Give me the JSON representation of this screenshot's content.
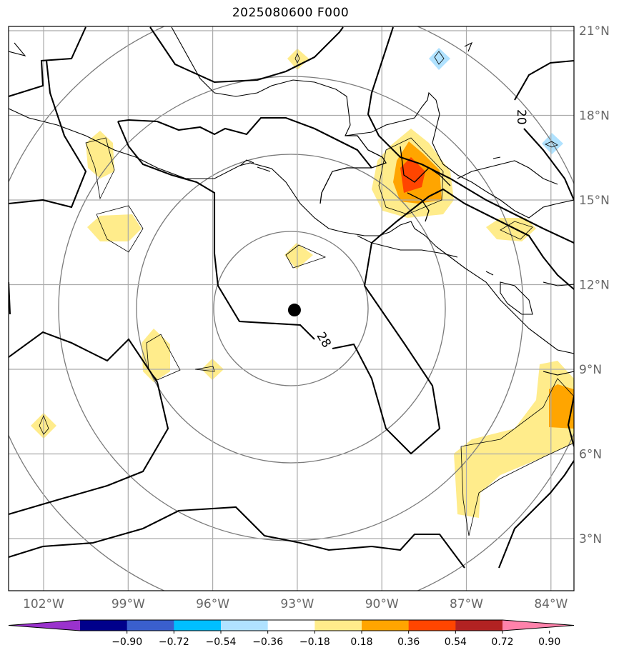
{
  "title": "2025080600 F000",
  "lat_labels": [
    "21°N",
    "18°N",
    "15°N",
    "12°N",
    "9°N",
    "6°N",
    "3°N"
  ],
  "lon_labels": [
    "102°W",
    "99°W",
    "96°W",
    "93°W",
    "90°W",
    "87°W",
    "84°W"
  ],
  "contour_labels": [
    "28",
    "20"
  ],
  "colorbar": {
    "colors": [
      "#9a32cd",
      "#00008b",
      "#3a5fcd",
      "#00bfff",
      "#b0e2ff",
      "#ffffff",
      "#ffec8b",
      "#ffa500",
      "#ff4500",
      "#b22222",
      "#ff82ab"
    ],
    "tick_labels": [
      "−0.90",
      "−0.72",
      "−0.54",
      "−0.36",
      "−0.18",
      "0.18",
      "0.36",
      "0.54",
      "0.72",
      "0.90"
    ]
  },
  "center_marker": {
    "lon": -93.1,
    "lat": 11.1
  }
}
